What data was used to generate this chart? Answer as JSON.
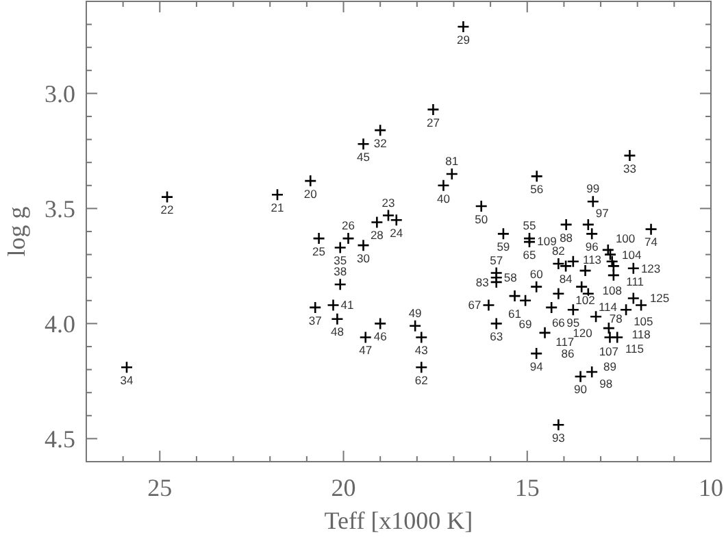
{
  "chart_data": {
    "type": "scatter",
    "xlabel": "Teff [x1000 K]",
    "ylabel": "log g",
    "xlim": [
      27,
      10
    ],
    "ylim": [
      4.6,
      2.6
    ],
    "xticks": [
      {
        "value": 27,
        "label": null
      },
      {
        "value": 26,
        "label": null
      },
      25,
      {
        "value": 24,
        "label": null
      },
      {
        "value": 23,
        "label": null
      },
      {
        "value": 22,
        "label": null
      },
      {
        "value": 21,
        "label": null
      },
      20,
      {
        "value": 19,
        "label": null
      },
      {
        "value": 18,
        "label": null
      },
      {
        "value": 17,
        "label": null
      },
      {
        "value": 16,
        "label": null
      },
      15,
      {
        "value": 14,
        "label": null
      },
      {
        "value": 13,
        "label": null
      },
      {
        "value": 12,
        "label": null
      },
      {
        "value": 11,
        "label": null
      },
      10
    ],
    "yticks": [
      {
        "value": 2.7,
        "label": null
      },
      {
        "value": 2.8,
        "label": null
      },
      {
        "value": 2.9,
        "label": null
      },
      {
        "value": 3,
        "label": "3.0"
      },
      {
        "value": 3.1,
        "label": null
      },
      {
        "value": 3.2,
        "label": null
      },
      {
        "value": 3.3,
        "label": null
      },
      {
        "value": 3.4,
        "label": null
      },
      3.5,
      {
        "value": 3.6,
        "label": null
      },
      {
        "value": 3.7,
        "label": null
      },
      {
        "value": 3.8,
        "label": null
      },
      {
        "value": 3.9,
        "label": null
      },
      {
        "value": 4,
        "label": "4.0"
      },
      {
        "value": 4.1,
        "label": null
      },
      {
        "value": 4.2,
        "label": null
      },
      {
        "value": 4.3,
        "label": null
      },
      {
        "value": 4.4,
        "label": null
      },
      4.5
    ],
    "grid": false,
    "marker": "cross",
    "series": [
      {
        "color": "#000000",
        "x": [
          24.8,
          21.8,
          20.9,
          19.46,
          20.67,
          20.09,
          19.87,
          19.46,
          25.9,
          20.77,
          20.28,
          20.09,
          20.17,
          19.4,
          19.0,
          16.74,
          17.56,
          19.0,
          12.21,
          17.05,
          17.28,
          14.74,
          16.25,
          13.21,
          19.09,
          18.78,
          18.56,
          11.63,
          13.94,
          13.34,
          15.65,
          14.94,
          14.94,
          13.24,
          12.8,
          12.74,
          12.69,
          12.65,
          12.65,
          12.11,
          14.15,
          13.95,
          13.75,
          13.42,
          13.52,
          15.84,
          15.84,
          15.84,
          14.75,
          15.34,
          15.05,
          14.15,
          13.34,
          13.75,
          16.05,
          15.84,
          14.34,
          13.13,
          12.31,
          12.11,
          11.9,
          12.78,
          12.55,
          12.75,
          14.52,
          14.75,
          18.05,
          17.88,
          17.88,
          13.55,
          13.24,
          14.15
        ],
        "values": [
          3.45,
          3.44,
          3.38,
          3.22,
          3.63,
          3.67,
          3.63,
          3.66,
          4.19,
          3.93,
          3.92,
          3.83,
          3.98,
          4.06,
          4.0,
          2.71,
          3.07,
          3.16,
          3.27,
          3.35,
          3.4,
          3.36,
          3.49,
          3.47,
          3.56,
          3.53,
          3.55,
          3.59,
          3.57,
          3.57,
          3.61,
          3.63,
          3.645,
          3.61,
          3.68,
          3.7,
          3.73,
          3.75,
          3.79,
          3.76,
          3.74,
          3.75,
          3.73,
          3.77,
          3.84,
          3.78,
          3.8,
          3.82,
          3.84,
          3.88,
          3.9,
          3.87,
          3.87,
          3.94,
          3.92,
          4.0,
          3.93,
          3.97,
          3.94,
          3.89,
          3.92,
          4.02,
          4.06,
          4.06,
          4.04,
          4.13,
          4.01,
          4.06,
          4.19,
          4.23,
          4.21,
          4.44
        ]
      }
    ],
    "annotations": [
      {
        "text": "22",
        "x": 24.8,
        "y": 3.45
      },
      {
        "text": "21",
        "x": 21.8,
        "y": 3.44
      },
      {
        "text": "20",
        "x": 20.9,
        "y": 3.38
      },
      {
        "text": "45",
        "x": 19.46,
        "y": 3.22
      },
      {
        "text": "25",
        "x": 20.67,
        "y": 3.63
      },
      {
        "text": "35",
        "x": 20.09,
        "y": 3.67
      },
      {
        "text": "26",
        "x": 19.87,
        "y": 3.63
      },
      {
        "text": "30",
        "x": 19.46,
        "y": 3.66
      },
      {
        "text": "34",
        "x": 25.9,
        "y": 4.19
      },
      {
        "text": "37",
        "x": 20.77,
        "y": 3.93
      },
      {
        "text": "41",
        "x": 20.28,
        "y": 3.92
      },
      {
        "text": "38",
        "x": 20.09,
        "y": 3.83
      },
      {
        "text": "48",
        "x": 20.17,
        "y": 3.98
      },
      {
        "text": "47",
        "x": 19.4,
        "y": 4.06
      },
      {
        "text": "46",
        "x": 19.0,
        "y": 4.0
      },
      {
        "text": "29",
        "x": 16.74,
        "y": 2.71
      },
      {
        "text": "27",
        "x": 17.56,
        "y": 3.07
      },
      {
        "text": "32",
        "x": 19.0,
        "y": 3.16
      },
      {
        "text": "33",
        "x": 12.21,
        "y": 3.27
      },
      {
        "text": "81",
        "x": 17.05,
        "y": 3.35
      },
      {
        "text": "40",
        "x": 17.28,
        "y": 3.4
      },
      {
        "text": "56",
        "x": 14.74,
        "y": 3.36
      },
      {
        "text": "50",
        "x": 16.25,
        "y": 3.49
      },
      {
        "text": "99",
        "x": 13.21,
        "y": 3.47
      },
      {
        "text": "28",
        "x": 19.09,
        "y": 3.56
      },
      {
        "text": "23",
        "x": 18.78,
        "y": 3.53
      },
      {
        "text": "24",
        "x": 18.56,
        "y": 3.55
      },
      {
        "text": "74",
        "x": 11.63,
        "y": 3.59
      },
      {
        "text": "88",
        "x": 13.94,
        "y": 3.57
      },
      {
        "text": "97",
        "x": 13.34,
        "y": 3.57
      },
      {
        "text": "59",
        "x": 15.65,
        "y": 3.61
      },
      {
        "text": "55",
        "x": 14.94,
        "y": 3.63
      },
      {
        "text": "65",
        "x": 14.94,
        "y": 3.645
      },
      {
        "text": "96",
        "x": 13.24,
        "y": 3.61
      },
      {
        "text": "100",
        "x": 12.8,
        "y": 3.68
      },
      {
        "text": "104",
        "x": 12.74,
        "y": 3.7
      },
      {
        "text": "108",
        "x": 12.69,
        "y": 3.73
      },
      {
        "text": "111",
        "x": 12.65,
        "y": 3.75
      },
      {
        "text": "113",
        "x": 12.65,
        "y": 3.79
      },
      {
        "text": "123",
        "x": 12.11,
        "y": 3.76
      },
      {
        "text": "82",
        "x": 14.15,
        "y": 3.74
      },
      {
        "text": "84",
        "x": 13.95,
        "y": 3.75
      },
      {
        "text": "109",
        "x": 13.75,
        "y": 3.73
      },
      {
        "text": "102",
        "x": 13.42,
        "y": 3.77
      },
      {
        "text": "114",
        "x": 13.52,
        "y": 3.84
      },
      {
        "text": "57",
        "x": 15.84,
        "y": 3.78
      },
      {
        "text": "58",
        "x": 15.84,
        "y": 3.8
      },
      {
        "text": "83",
        "x": 15.84,
        "y": 3.82
      },
      {
        "text": "60",
        "x": 14.75,
        "y": 3.84
      },
      {
        "text": "61",
        "x": 15.34,
        "y": 3.88
      },
      {
        "text": "69",
        "x": 15.05,
        "y": 3.9
      },
      {
        "text": "66",
        "x": 14.15,
        "y": 3.87
      },
      {
        "text": "78",
        "x": 13.34,
        "y": 3.87
      },
      {
        "text": "95",
        "x": 13.75,
        "y": 3.94
      },
      {
        "text": "67",
        "x": 16.05,
        "y": 3.92
      },
      {
        "text": "63",
        "x": 15.84,
        "y": 4.0
      },
      {
        "text": "120",
        "x": 14.34,
        "y": 3.93
      },
      {
        "text": "117",
        "x": 13.13,
        "y": 3.97
      },
      {
        "text": "105",
        "x": 12.31,
        "y": 3.94
      },
      {
        "text": "125",
        "x": 12.11,
        "y": 3.89
      },
      {
        "text": "118",
        "x": 11.9,
        "y": 3.92
      },
      {
        "text": "107",
        "x": 12.78,
        "y": 4.02
      },
      {
        "text": "115",
        "x": 12.55,
        "y": 4.06
      },
      {
        "text": "89",
        "x": 12.75,
        "y": 4.06
      },
      {
        "text": "86",
        "x": 14.52,
        "y": 4.04
      },
      {
        "text": "94",
        "x": 14.75,
        "y": 4.13
      },
      {
        "text": "49",
        "x": 18.05,
        "y": 4.01
      },
      {
        "text": "43",
        "x": 17.88,
        "y": 4.06
      },
      {
        "text": "62",
        "x": 17.88,
        "y": 4.19
      },
      {
        "text": "90",
        "x": 13.55,
        "y": 4.23
      },
      {
        "text": "98",
        "x": 13.24,
        "y": 4.21
      },
      {
        "text": "93",
        "x": 14.15,
        "y": 4.44
      }
    ]
  }
}
